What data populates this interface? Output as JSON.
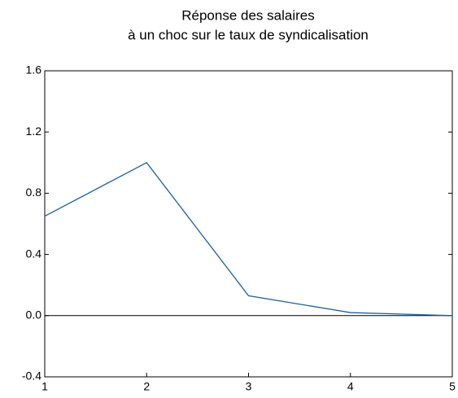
{
  "chart_data": {
    "type": "line",
    "title": "Réponse des salaires",
    "subtitle": "à un choc sur le taux de syndicalisation",
    "x": [
      1,
      2,
      3,
      4,
      5
    ],
    "series": [
      {
        "name": "Réponse des salaires",
        "color": "#1f5fa0",
        "values": [
          0.65,
          1.0,
          0.13,
          0.02,
          0.0
        ]
      }
    ],
    "xlim": [
      1,
      5
    ],
    "xticks": [
      1,
      2,
      3,
      4,
      5
    ],
    "ylim": [
      -0.4,
      1.6
    ],
    "yticks": [
      -0.4,
      {
        "value": 0,
        "label": "0.0"
      },
      0.4,
      0.8,
      1.2,
      1.6
    ],
    "zero_line": true,
    "grid": false
  }
}
